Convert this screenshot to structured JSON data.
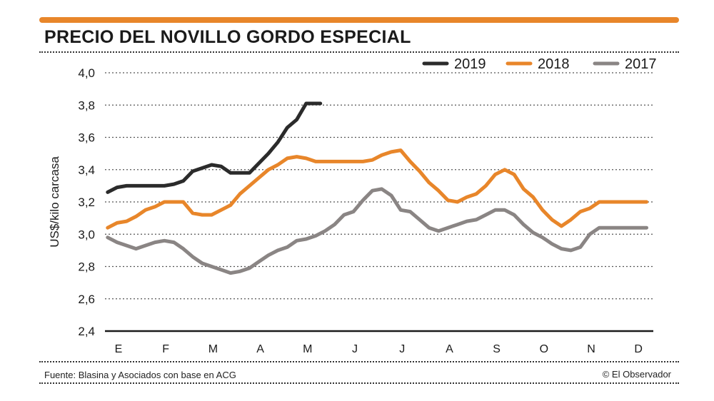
{
  "header": {
    "title": "PRECIO DEL NOVILLO GORDO ESPECIAL",
    "accent_color": "#e8862a"
  },
  "footer": {
    "source": "Fuente: Blasina y Asociados con base en ACG",
    "credit": "© El Observador"
  },
  "chart_data": {
    "type": "line",
    "title": "PRECIO DEL NOVILLO GORDO ESPECIAL",
    "xlabel": "",
    "ylabel": "US$/kilo carcasa",
    "ylim": [
      2.4,
      4.0
    ],
    "yticks": [
      2.4,
      2.6,
      2.8,
      3.0,
      3.2,
      3.4,
      3.6,
      3.8,
      4.0
    ],
    "ytick_labels": [
      "2,4",
      "2,6",
      "2,8",
      "3,0",
      "3,2",
      "3,4",
      "3,6",
      "3,8",
      "4,0"
    ],
    "xlim": [
      0,
      11
    ],
    "categories": [
      "E",
      "F",
      "M",
      "A",
      "M",
      "J",
      "J",
      "A",
      "S",
      "O",
      "N",
      "D"
    ],
    "grid": true,
    "legend_position": "top-right",
    "series": [
      {
        "name": "2019",
        "color": "#2b2b2b",
        "x": [
          -0.23,
          -0.03,
          0.17,
          0.37,
          0.57,
          0.77,
          0.97,
          1.17,
          1.37,
          1.57,
          1.77,
          1.97,
          2.17,
          2.37,
          2.57,
          2.77,
          2.97,
          3.17,
          3.37,
          3.57,
          3.77,
          3.97,
          4.17,
          4.27
        ],
        "values": [
          3.26,
          3.29,
          3.3,
          3.3,
          3.3,
          3.3,
          3.3,
          3.31,
          3.33,
          3.39,
          3.41,
          3.43,
          3.42,
          3.38,
          3.38,
          3.38,
          3.44,
          3.5,
          3.57,
          3.66,
          3.71,
          3.81,
          3.81,
          3.81
        ]
      },
      {
        "name": "2018",
        "color": "#e8862a",
        "x": [
          -0.23,
          -0.03,
          0.17,
          0.37,
          0.57,
          0.77,
          0.97,
          1.17,
          1.37,
          1.57,
          1.77,
          1.97,
          2.17,
          2.37,
          2.57,
          2.77,
          2.97,
          3.17,
          3.37,
          3.57,
          3.77,
          3.97,
          4.17,
          4.37,
          4.57,
          4.77,
          4.97,
          5.17,
          5.37,
          5.57,
          5.77,
          5.97,
          6.17,
          6.37,
          6.57,
          6.77,
          6.97,
          7.17,
          7.37,
          7.57,
          7.77,
          7.97,
          8.17,
          8.37,
          8.57,
          8.77,
          8.97,
          9.17,
          9.37,
          9.57,
          9.77,
          9.97,
          10.17,
          10.37,
          10.57,
          10.77,
          10.97,
          11.17
        ],
        "values": [
          3.04,
          3.07,
          3.08,
          3.11,
          3.15,
          3.17,
          3.2,
          3.2,
          3.2,
          3.13,
          3.12,
          3.12,
          3.15,
          3.18,
          3.25,
          3.3,
          3.35,
          3.4,
          3.43,
          3.47,
          3.48,
          3.47,
          3.45,
          3.45,
          3.45,
          3.45,
          3.45,
          3.45,
          3.46,
          3.49,
          3.51,
          3.52,
          3.45,
          3.39,
          3.32,
          3.27,
          3.21,
          3.2,
          3.23,
          3.25,
          3.3,
          3.37,
          3.4,
          3.37,
          3.28,
          3.23,
          3.15,
          3.09,
          3.05,
          3.09,
          3.14,
          3.16,
          3.2,
          3.2,
          3.2,
          3.2,
          3.2,
          3.2
        ]
      },
      {
        "name": "2017",
        "color": "#8a8584",
        "x": [
          -0.23,
          -0.03,
          0.17,
          0.37,
          0.57,
          0.77,
          0.97,
          1.17,
          1.37,
          1.57,
          1.77,
          1.97,
          2.17,
          2.37,
          2.57,
          2.77,
          2.97,
          3.17,
          3.37,
          3.57,
          3.77,
          3.97,
          4.17,
          4.37,
          4.57,
          4.77,
          4.97,
          5.17,
          5.37,
          5.57,
          5.77,
          5.97,
          6.17,
          6.37,
          6.57,
          6.77,
          6.97,
          7.17,
          7.37,
          7.57,
          7.77,
          7.97,
          8.17,
          8.37,
          8.57,
          8.77,
          8.97,
          9.17,
          9.37,
          9.57,
          9.77,
          9.97,
          10.17,
          10.37,
          10.57,
          10.77,
          10.97,
          11.17
        ],
        "values": [
          2.98,
          2.95,
          2.93,
          2.91,
          2.93,
          2.95,
          2.96,
          2.95,
          2.91,
          2.86,
          2.82,
          2.8,
          2.78,
          2.76,
          2.77,
          2.79,
          2.83,
          2.87,
          2.9,
          2.92,
          2.96,
          2.97,
          2.99,
          3.02,
          3.06,
          3.12,
          3.14,
          3.21,
          3.27,
          3.28,
          3.24,
          3.15,
          3.14,
          3.09,
          3.04,
          3.02,
          3.04,
          3.06,
          3.08,
          3.09,
          3.12,
          3.15,
          3.15,
          3.12,
          3.06,
          3.01,
          2.98,
          2.94,
          2.91,
          2.9,
          2.92,
          3.0,
          3.04,
          3.04,
          3.04,
          3.04,
          3.04,
          3.04
        ]
      }
    ]
  }
}
